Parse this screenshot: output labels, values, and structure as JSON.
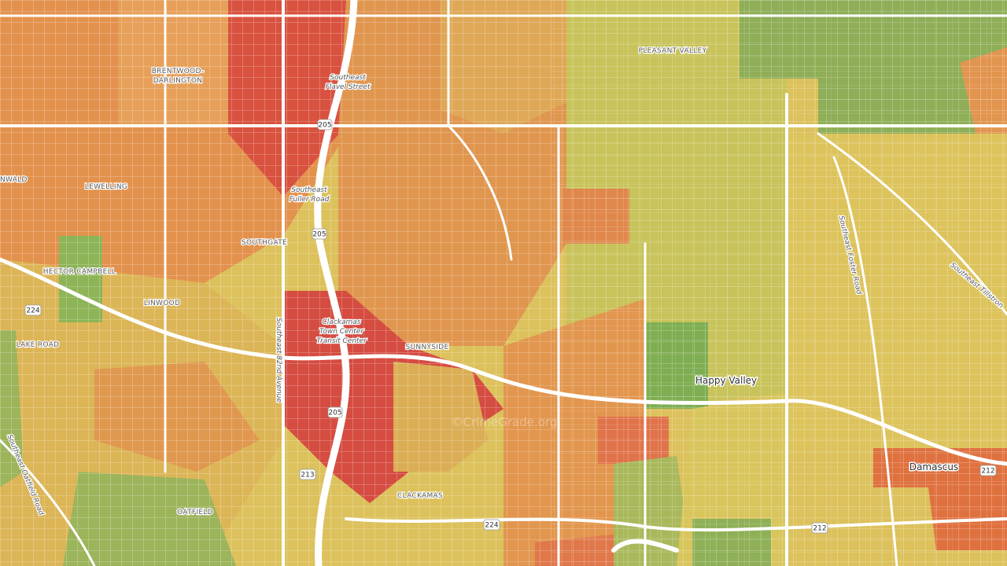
{
  "place_labels": {
    "pleasant_valley": "PLEASANT VALLEY",
    "brentwood_darlington": [
      "BRENTWOOD-",
      "DARLINGTON"
    ],
    "lewelling": "LEWELLING",
    "nwald": "NWALD",
    "southgate": "SOUTHGATE",
    "hector_campbell": "HECTOR CAMPBELL",
    "linwood": "LINWOOD",
    "lake_road": "LAKE ROAD",
    "sunnyside": "SUNNYSIDE",
    "clackamas": "CLACKAMAS",
    "oatfield": "OATFIELD",
    "happy_valley": "Happy Valley",
    "damascus": "Damascus"
  },
  "street_labels": {
    "flavel": [
      "Southeast",
      "Flavel Street"
    ],
    "fuller": [
      "Southeast",
      "Fuller Road"
    ],
    "se_82nd": "Southeast 82nd Avenue",
    "transit": [
      "Clackamas",
      "Town Center",
      "Transit Center"
    ],
    "foster": "Southeast Foster Road",
    "tillstrom": "Southeast Tillstron",
    "oatfield_road": "Southeast Oatfield Road"
  },
  "shields": [
    "205",
    "205",
    "205",
    "224",
    "224",
    "213",
    "212",
    "212"
  ],
  "watermark": "©CrimeGrade.org"
}
